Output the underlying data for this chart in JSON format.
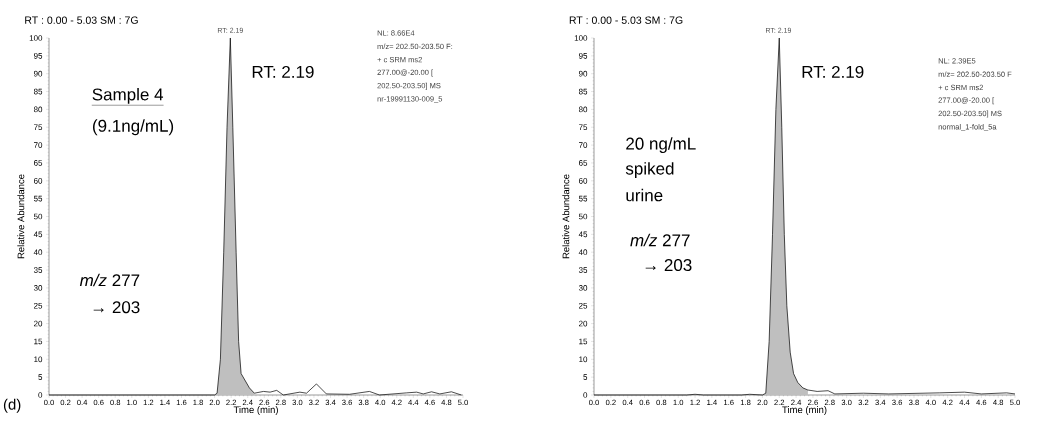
{
  "chart_data": [
    {
      "type": "line",
      "title": "RT : 0.00 - 5.03 SM : 7G",
      "xlabel": "Time (min)",
      "ylabel": "Relative Abundance",
      "xlim": [
        0,
        5.0
      ],
      "ylim": [
        0,
        100
      ],
      "xticks": [
        {
          "value": 0,
          "label": "0.0"
        },
        {
          "value": 0.2,
          "label": "0.2"
        },
        {
          "value": 0.4,
          "label": "0.4"
        },
        {
          "value": 0.6,
          "label": "0.6"
        },
        {
          "value": 0.8,
          "label": "0.8"
        },
        {
          "value": 1.0,
          "label": "1.0"
        },
        {
          "value": 1.2,
          "label": "1.2"
        },
        {
          "value": 1.4,
          "label": "1.4"
        },
        {
          "value": 1.6,
          "label": "1.6"
        },
        {
          "value": 1.8,
          "label": "1.8"
        },
        {
          "value": 2.0,
          "label": "2.0"
        },
        {
          "value": 2.2,
          "label": "2.2"
        },
        {
          "value": 2.4,
          "label": "2.4"
        },
        {
          "value": 2.6,
          "label": "2.6"
        },
        {
          "value": 2.8,
          "label": "2.8"
        },
        {
          "value": 3.0,
          "label": "3.0"
        },
        {
          "value": 3.2,
          "label": "3.2"
        },
        {
          "value": 3.4,
          "label": "3.4"
        },
        {
          "value": 3.6,
          "label": "3.6"
        },
        {
          "value": 3.8,
          "label": "3.8"
        },
        {
          "value": 4.0,
          "label": "4.0"
        },
        {
          "value": 4.2,
          "label": "4.2"
        },
        {
          "value": 4.4,
          "label": "4.4"
        },
        {
          "value": 4.6,
          "label": "4.6"
        },
        {
          "value": 4.8,
          "label": "4.8"
        },
        {
          "value": 5.0,
          "label": "5.0"
        }
      ],
      "yticks": [
        0,
        5,
        10,
        15,
        20,
        25,
        30,
        35,
        40,
        45,
        50,
        55,
        60,
        65,
        70,
        75,
        80,
        85,
        90,
        95,
        100
      ],
      "series": [
        {
          "type": "area",
          "color": "#bfbfbf",
          "x": [
            2.0,
            2.03,
            2.07,
            2.11,
            2.15,
            2.19,
            2.22,
            2.26,
            2.29,
            2.32,
            2.37,
            2.42,
            2.48
          ],
          "values": [
            0,
            0.5,
            10,
            40,
            75,
            100,
            75,
            40,
            15,
            6,
            4,
            2,
            0.5
          ]
        },
        {
          "color": "#000000",
          "x": [
            0,
            1.0,
            2.0,
            2.03,
            2.07,
            2.11,
            2.15,
            2.19,
            2.22,
            2.26,
            2.29,
            2.32,
            2.37,
            2.42,
            2.48,
            2.59,
            2.67,
            2.75,
            2.83,
            3.03,
            3.11,
            3.23,
            3.35,
            3.63,
            3.87,
            3.99,
            4.32,
            4.44,
            4.52,
            4.62,
            4.72,
            4.86,
            4.98
          ],
          "values": [
            0,
            0,
            0,
            0.5,
            10,
            40,
            75,
            100,
            75,
            40,
            15,
            6,
            4,
            2,
            0.5,
            1.0,
            0.8,
            1.3,
            0,
            0.8,
            0.5,
            3.1,
            0.3,
            0.2,
            1.0,
            0,
            0.6,
            0.8,
            0.3,
            0.9,
            0.3,
            0.9,
            0
          ]
        }
      ],
      "annotations": [
        {
          "text": "RT: 2.19",
          "x": 2.19,
          "y": 100
        },
        "RT: 2.19",
        "Sample 4",
        "(9.1ng/mL)",
        "*m/z* 277",
        "→ 203",
        "NL: 8.66E4",
        "m/z= 202.50-203.50 F:",
        "+ c SRM ms2",
        "277.00@-20.00 [",
        "202.50-203.50]  MS",
        "nr-19991130-009_5",
        "(d)"
      ]
    },
    {
      "type": "line",
      "title": "RT : 0.00 - 5.03 SM : 7G",
      "xlabel": "Time (min)",
      "ylabel": "Relative Abundance",
      "xlim": [
        0,
        5.0
      ],
      "ylim": [
        0,
        100
      ],
      "xticks": [
        {
          "value": 0,
          "label": "0.0"
        },
        {
          "value": 0.2,
          "label": "0.2"
        },
        {
          "value": 0.4,
          "label": "0.4"
        },
        {
          "value": 0.6,
          "label": "0.6"
        },
        {
          "value": 0.8,
          "label": "0.8"
        },
        {
          "value": 1.0,
          "label": "1.0"
        },
        {
          "value": 1.2,
          "label": "1.2"
        },
        {
          "value": 1.4,
          "label": "1.4"
        },
        {
          "value": 1.6,
          "label": "1.6"
        },
        {
          "value": 1.8,
          "label": "1.8"
        },
        {
          "value": 2.0,
          "label": "2.0"
        },
        {
          "value": 2.2,
          "label": "2.2"
        },
        {
          "value": 2.4,
          "label": "2.4"
        },
        {
          "value": 2.6,
          "label": "2.6"
        },
        {
          "value": 2.8,
          "label": "2.8"
        },
        {
          "value": 3.0,
          "label": "3.0"
        },
        {
          "value": 3.2,
          "label": "3.2"
        },
        {
          "value": 3.4,
          "label": "3.4"
        },
        {
          "value": 3.6,
          "label": "3.6"
        },
        {
          "value": 3.8,
          "label": "3.8"
        },
        {
          "value": 4.0,
          "label": "4.0"
        },
        {
          "value": 4.2,
          "label": "4.2"
        },
        {
          "value": 4.4,
          "label": "4.4"
        },
        {
          "value": 4.6,
          "label": "4.6"
        },
        {
          "value": 4.8,
          "label": "4.8"
        },
        {
          "value": 5.0,
          "label": "5.0"
        }
      ],
      "yticks": [
        0,
        5,
        10,
        15,
        20,
        25,
        30,
        35,
        40,
        45,
        50,
        55,
        60,
        65,
        70,
        75,
        80,
        85,
        90,
        95,
        100
      ],
      "series": [
        {
          "type": "area",
          "color": "#bfbfbf",
          "x": [
            2.0,
            2.04,
            2.08,
            2.12,
            2.16,
            2.2,
            2.23,
            2.26,
            2.29,
            2.33,
            2.37,
            2.42,
            2.48,
            2.54
          ],
          "values": [
            0,
            0.5,
            15,
            45,
            80,
            100,
            75,
            45,
            25,
            12,
            6,
            3.5,
            2,
            1.4
          ]
        },
        {
          "color": "#000000",
          "x": [
            0,
            1.1,
            1.2,
            1.3,
            1.75,
            1.85,
            2.0,
            2.04,
            2.08,
            2.12,
            2.16,
            2.2,
            2.23,
            2.26,
            2.29,
            2.33,
            2.37,
            2.42,
            2.48,
            2.54,
            2.65,
            2.78,
            2.86,
            3.2,
            3.5,
            4.1,
            4.4,
            4.6,
            4.9,
            5.0
          ],
          "values": [
            0,
            0,
            0.2,
            0,
            0,
            0.2,
            0,
            0.5,
            15,
            45,
            80,
            100,
            75,
            45,
            25,
            12,
            6,
            3.5,
            2,
            1.4,
            1.0,
            1.2,
            0.3,
            0.5,
            0.3,
            0.6,
            0.8,
            0.3,
            0.6,
            0.3
          ]
        }
      ],
      "annotations": [
        {
          "text": "RT: 2.19",
          "x": 2.19,
          "y": 100
        },
        "RT: 2.19",
        "20 ng/mL",
        "spiked",
        "urine",
        "*m/z* 277",
        "→ 203",
        "NL: 2.39E5",
        "m/z= 202.50-203.50 F",
        "+ c SRM ms2",
        "277.00@-20.00 [",
        "202.50-203.50]  MS",
        "normal_1-fold_5a"
      ]
    }
  ]
}
